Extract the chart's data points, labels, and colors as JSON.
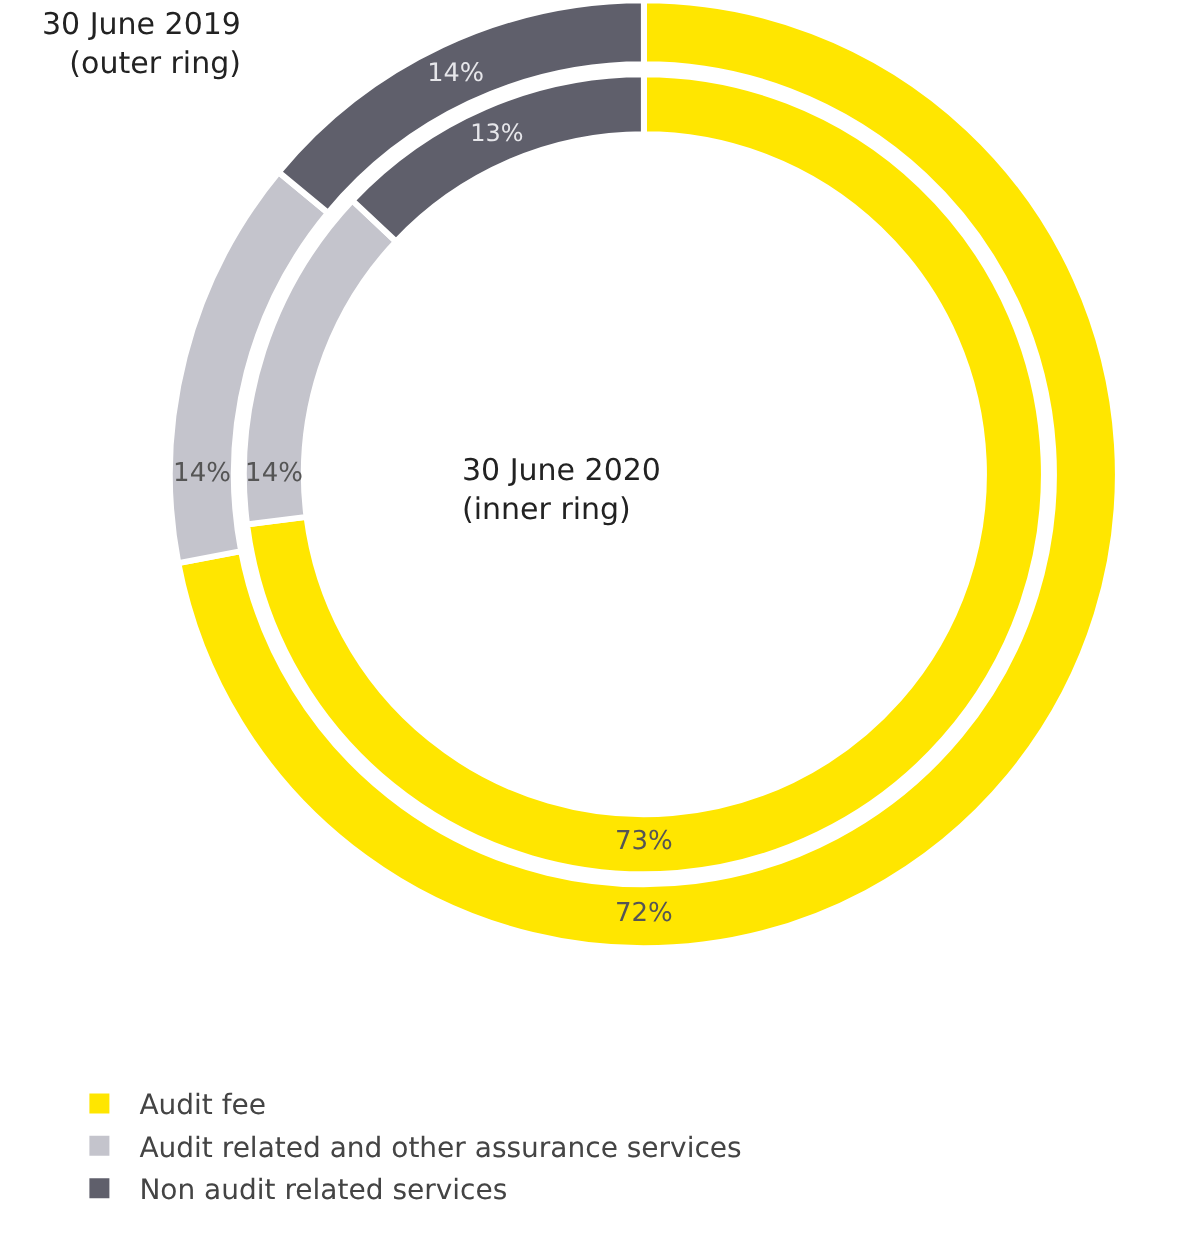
{
  "chart_data": [
    {
      "type": "donut",
      "title": "30 June 2019\n(outer ring)",
      "categories": [
        "Audit fee",
        "Audit related and other assurance services",
        "Non audit related services"
      ],
      "colors": [
        "#ffe600",
        "#c4c4cc",
        "#5f5f6b"
      ],
      "values": [
        72,
        14,
        14
      ],
      "value_labels": [
        "72%",
        "14%",
        "14%"
      ],
      "legend": "bottom left"
    },
    {
      "type": "donut",
      "title": "30 June 2020\n(inner ring)",
      "categories": [
        null,
        null,
        null
      ],
      "colors": [
        "#ffe600",
        "#c4c4cc",
        "#5f5f6b"
      ],
      "values": [
        73,
        14,
        13
      ],
      "value_labels": [
        "73%",
        "14%",
        "13%"
      ]
    }
  ]
}
